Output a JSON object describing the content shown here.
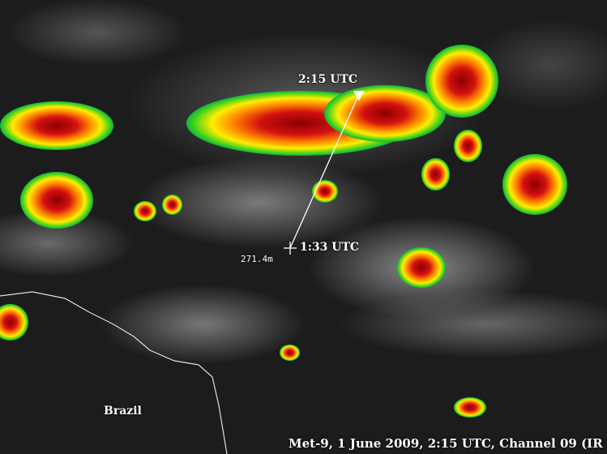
{
  "annotations": {
    "end_time": "2:15 UTC",
    "start_time": "1:33 UTC",
    "altitude": "271.4m",
    "country": "Brazil",
    "caption": "Met-9, 1 June 2009, 2:15 UTC, Channel 09 (IR"
  },
  "colors": {
    "track": "#ffffff",
    "border": "#ffffff",
    "text": "#ffffff"
  }
}
